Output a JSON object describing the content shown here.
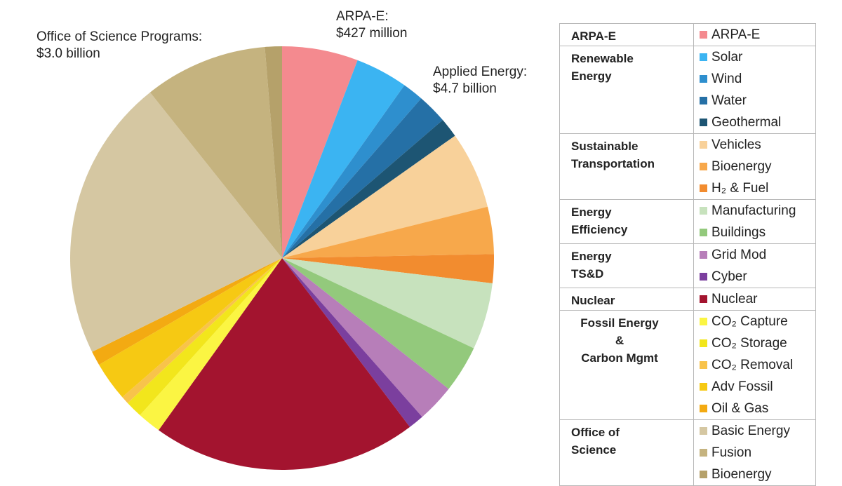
{
  "chart_data": {
    "type": "pie",
    "title": "",
    "unit": "share",
    "slices": [
      {
        "label": "ARPA-E",
        "group": "ARPA-E",
        "value": 5.8,
        "color": "#F48A8F"
      },
      {
        "label": "Solar",
        "group": "Renewable Energy",
        "value": 4.0,
        "color": "#3BB4F2"
      },
      {
        "label": "Wind",
        "group": "Renewable Energy",
        "value": 1.6,
        "color": "#2E8FCE"
      },
      {
        "label": "Water",
        "group": "Renewable Energy",
        "value": 2.3,
        "color": "#2570A6"
      },
      {
        "label": "Geothermal",
        "group": "Renewable Energy",
        "value": 1.5,
        "color": "#1D5573"
      },
      {
        "label": "Vehicles",
        "group": "Sustainable Transportation",
        "value": 5.9,
        "color": "#F8D19A"
      },
      {
        "label": "Bioenergy",
        "group": "Sustainable Transportation",
        "value": 3.6,
        "color": "#F7A84B"
      },
      {
        "label": "H2 & Fuel",
        "group": "Sustainable Transportation",
        "value": 2.2,
        "color": "#F28C2F"
      },
      {
        "label": "Manufacturing",
        "group": "Energy Efficiency",
        "value": 5.1,
        "color": "#C7E2BD"
      },
      {
        "label": "Buildings",
        "group": "Energy Efficiency",
        "value": 3.6,
        "color": "#93C97C"
      },
      {
        "label": "Grid Mod",
        "group": "Energy TS&D",
        "value": 2.9,
        "color": "#B77EB9"
      },
      {
        "label": "Cyber",
        "group": "Energy TS&D",
        "value": 1.2,
        "color": "#7B3F9E"
      },
      {
        "label": "Nuclear",
        "group": "Nuclear",
        "value": 20.2,
        "color": "#A3142F"
      },
      {
        "label": "CO2 Capture",
        "group": "Fossil Energy & Carbon Mgmt",
        "value": 1.8,
        "color": "#FBF543"
      },
      {
        "label": "CO2 Storage",
        "group": "Fossil Energy & Carbon Mgmt",
        "value": 1.3,
        "color": "#F2E61C"
      },
      {
        "label": "CO2 Removal",
        "group": "Fossil Energy & Carbon Mgmt",
        "value": 0.6,
        "color": "#F8C34B"
      },
      {
        "label": "Adv Fossil",
        "group": "Fossil Energy & Carbon Mgmt",
        "value": 3.0,
        "color": "#F6C913"
      },
      {
        "label": "Oil & Gas",
        "group": "Fossil Energy & Carbon Mgmt",
        "value": 1.1,
        "color": "#F3AA12"
      },
      {
        "label": "Basic Energy",
        "group": "Office of Science",
        "value": 21.6,
        "color": "#D5C7A2"
      },
      {
        "label": "Fusion",
        "group": "Office of Science",
        "value": 9.4,
        "color": "#C5B37F"
      },
      {
        "label": "Bioenergy",
        "group": "Office of Science",
        "value": 1.3,
        "color": "#B5A16A"
      }
    ],
    "start_angle_deg": 0
  },
  "callouts": {
    "science": [
      "Office of Science Programs:",
      "$3.0 billion"
    ],
    "arpae": [
      "ARPA-E:",
      "$427 million"
    ],
    "applied": [
      "Applied Energy:",
      "$4.7 billion"
    ]
  },
  "legend": {
    "groups": [
      {
        "name": [
          "ARPA-E"
        ],
        "items": [
          {
            "label": "ARPA-E",
            "color": "#F48A8F"
          }
        ]
      },
      {
        "name": [
          "Renewable",
          "Energy"
        ],
        "items": [
          {
            "label": "Solar",
            "color": "#3BB4F2"
          },
          {
            "label": "Wind",
            "color": "#2E8FCE"
          },
          {
            "label": "Water",
            "color": "#2570A6"
          },
          {
            "label": "Geothermal",
            "color": "#1D5573"
          }
        ]
      },
      {
        "name": [
          "Sustainable",
          "Transportation"
        ],
        "items": [
          {
            "label": "Vehicles",
            "color": "#F8D19A"
          },
          {
            "label": "Bioenergy",
            "color": "#F7A84B"
          },
          {
            "label": "H₂ & Fuel",
            "color": "#F28C2F"
          }
        ]
      },
      {
        "name": [
          "Energy",
          "Efficiency"
        ],
        "items": [
          {
            "label": "Manufacturing",
            "color": "#C7E2BD"
          },
          {
            "label": "Buildings",
            "color": "#93C97C"
          }
        ]
      },
      {
        "name": [
          "Energy",
          "TS&D"
        ],
        "items": [
          {
            "label": "Grid Mod",
            "color": "#B77EB9"
          },
          {
            "label": "Cyber",
            "color": "#7B3F9E"
          }
        ]
      },
      {
        "name": [
          "Nuclear"
        ],
        "items": [
          {
            "label": "Nuclear",
            "color": "#A3142F"
          }
        ]
      },
      {
        "name": [
          "Fossil Energy",
          "&",
          "Carbon Mgmt"
        ],
        "center": true,
        "items": [
          {
            "label": "CO₂ Capture",
            "color": "#FBF543"
          },
          {
            "label": "CO₂ Storage",
            "color": "#F2E61C"
          },
          {
            "label": "CO₂ Removal",
            "color": "#F8C34B"
          },
          {
            "label": "Adv Fossil",
            "color": "#F6C913"
          },
          {
            "label": "Oil & Gas",
            "color": "#F3AA12"
          }
        ]
      },
      {
        "name": [
          "Office of",
          "Science"
        ],
        "items": [
          {
            "label": "Basic Energy",
            "color": "#D5C7A2"
          },
          {
            "label": "Fusion",
            "color": "#C5B37F"
          },
          {
            "label": "Bioenergy",
            "color": "#B5A16A"
          }
        ]
      }
    ]
  }
}
